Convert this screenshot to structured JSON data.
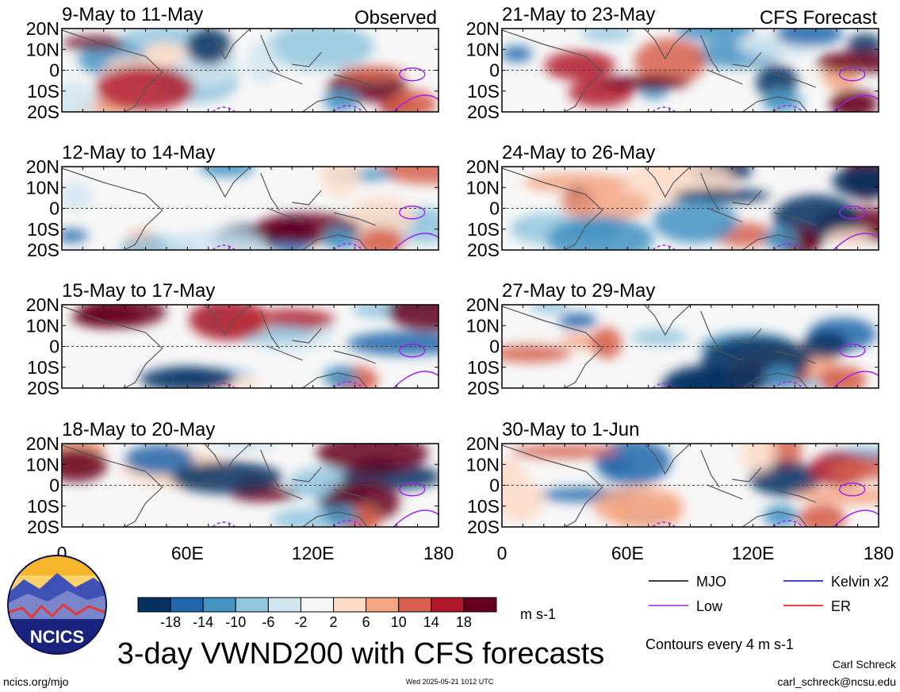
{
  "chart_data": {
    "type": "heatmap",
    "title": "3-day VWND200 with CFS forecasts",
    "variable": "VWND200",
    "units": "m s-1",
    "contour_note": "Contours every 4 m s-1",
    "x_axis": {
      "ticks": [
        "0",
        "60E",
        "120E",
        "180"
      ],
      "range": [
        0,
        180
      ]
    },
    "y_axis": {
      "ticks": [
        "20N",
        "10N",
        "0",
        "10S",
        "20S"
      ],
      "range": [
        -20,
        20
      ]
    },
    "colorbar": {
      "labels": [
        "-18",
        "-14",
        "-10",
        "-6",
        "-2",
        "2",
        "6",
        "10",
        "14",
        "18"
      ],
      "colors": [
        "#053061",
        "#2166ac",
        "#4393c3",
        "#92c5de",
        "#d1e5f0",
        "#f7f7f7",
        "#fddbc7",
        "#f4a582",
        "#d6604d",
        "#b2182b",
        "#67001f"
      ]
    },
    "legend": [
      {
        "label": "MJO",
        "color": "#000000"
      },
      {
        "label": "Kelvin x2",
        "color": "#0000ff"
      },
      {
        "label": "Low",
        "color": "#a020f0"
      },
      {
        "label": "ER",
        "color": "#ff0000"
      }
    ],
    "panels": [
      {
        "column": "left",
        "period": "9-May to 11-May",
        "tag": "Observed"
      },
      {
        "column": "left",
        "period": "12-May to 14-May",
        "tag": ""
      },
      {
        "column": "left",
        "period": "15-May to 17-May",
        "tag": ""
      },
      {
        "column": "left",
        "period": "18-May to 20-May",
        "tag": ""
      },
      {
        "column": "right",
        "period": "21-May to 23-May",
        "tag": "CFS Forecast"
      },
      {
        "column": "right",
        "period": "24-May to 26-May",
        "tag": ""
      },
      {
        "column": "right",
        "period": "27-May to 29-May",
        "tag": ""
      },
      {
        "column": "right",
        "period": "30-May to 1-Jun",
        "tag": ""
      }
    ]
  },
  "footer": {
    "logo_text": "NCICS",
    "url": "ncics.org/mjo",
    "timestamp": "Wed 2025-05-21 1012 UTC",
    "author": "Carl Schreck",
    "email": "carl_schreck@ncsu.edu"
  }
}
